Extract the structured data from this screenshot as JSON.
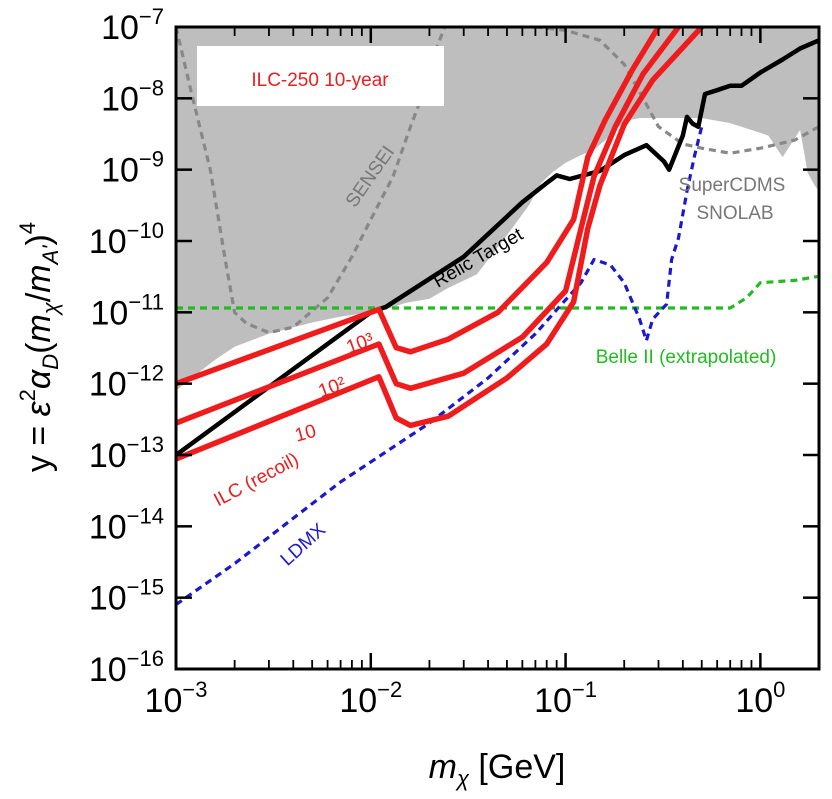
{
  "chart_data": {
    "type": "line",
    "title": "ILC-250 10-year",
    "xlabel": "m_χ [GeV]",
    "ylabel": "y = ε²α_D(m_χ/m_A')⁴",
    "x_scale": "log",
    "y_scale": "log",
    "xlim": [
      0.001,
      2.0
    ],
    "ylim": [
      1e-16,
      1e-07
    ],
    "grid": false,
    "x_ticks": [
      {
        "value": 0.001,
        "base": "10",
        "exp": "−3"
      },
      {
        "value": 0.01,
        "base": "10",
        "exp": "−2"
      },
      {
        "value": 0.1,
        "base": "10",
        "exp": "−1"
      },
      {
        "value": 1,
        "base": "10",
        "exp": "0"
      }
    ],
    "y_ticks": [
      {
        "value": 1e-16,
        "base": "10",
        "exp": "−16"
      },
      {
        "value": 1e-15,
        "base": "10",
        "exp": "−15"
      },
      {
        "value": 1e-14,
        "base": "10",
        "exp": "−14"
      },
      {
        "value": 1e-13,
        "base": "10",
        "exp": "−13"
      },
      {
        "value": 1e-12,
        "base": "10",
        "exp": "−12"
      },
      {
        "value": 1e-11,
        "base": "10",
        "exp": "−11"
      },
      {
        "value": 1e-10,
        "base": "10",
        "exp": "−10"
      },
      {
        "value": 1e-09,
        "base": "10",
        "exp": "−9"
      },
      {
        "value": 1e-08,
        "base": "10",
        "exp": "−8"
      },
      {
        "value": 1e-07,
        "base": "10",
        "exp": "−7"
      }
    ],
    "excluded_region": {
      "color": "#bebebe",
      "boundary": [
        [
          0.001,
          8e-13
        ],
        [
          0.00125,
          1.3e-12
        ],
        [
          0.0016,
          2.2e-12
        ],
        [
          0.002,
          3.3e-12
        ],
        [
          0.003,
          5e-12
        ],
        [
          0.005,
          7.2e-12
        ],
        [
          0.007,
          8.7e-12
        ],
        [
          0.01,
          1e-11
        ],
        [
          0.012,
          1.1e-11
        ],
        [
          0.015,
          1.35e-11
        ],
        [
          0.02,
          1.55e-11
        ],
        [
          0.025,
          2.2e-11
        ],
        [
          0.035,
          3.4e-11
        ],
        [
          0.05,
          1.2e-10
        ],
        [
          0.065,
          3.2e-10
        ],
        [
          0.075,
          6.5e-10
        ],
        [
          0.085,
          9e-10
        ],
        [
          0.1,
          1.25e-09
        ],
        [
          0.12,
          1.6e-09
        ],
        [
          0.14,
          1.9e-09
        ],
        [
          0.16,
          2.6e-09
        ],
        [
          0.2,
          4.8e-09
        ],
        [
          0.24,
          5.3e-09
        ],
        [
          0.3,
          5.3e-09
        ],
        [
          0.4,
          5.3e-09
        ],
        [
          0.5,
          5.3e-09
        ],
        [
          0.7,
          4.5e-09
        ],
        [
          0.9,
          3.6e-09
        ],
        [
          1.1,
          3e-09
        ],
        [
          1.3,
          1.5e-09
        ],
        [
          1.6,
          3.6e-09
        ],
        [
          1.75,
          9e-10
        ],
        [
          1.9,
          6e-10
        ],
        [
          2.0,
          5e-10
        ]
      ]
    },
    "series": [
      {
        "name": "Relic Target",
        "color": "#000000",
        "style": "solid",
        "points": [
          [
            0.001,
            1e-13
          ],
          [
            0.01,
            1e-11
          ],
          [
            0.012,
            1.2e-11
          ],
          [
            0.03,
            6e-11
          ],
          [
            0.06,
            3.5e-10
          ],
          [
            0.08,
            6.5e-10
          ],
          [
            0.09,
            8.3e-10
          ],
          [
            0.105,
            7.4e-10
          ],
          [
            0.15,
            9.6e-10
          ],
          [
            0.2,
            1.6e-09
          ],
          [
            0.26,
            2.2e-09
          ],
          [
            0.32,
            1.3e-09
          ],
          [
            0.34,
            1e-09
          ],
          [
            0.4,
            3e-09
          ],
          [
            0.42,
            5.5e-09
          ],
          [
            0.45,
            4.4e-09
          ],
          [
            0.48,
            4e-09
          ],
          [
            0.52,
            1.15e-08
          ],
          [
            0.6,
            1.3e-08
          ],
          [
            0.7,
            1.5e-08
          ],
          [
            0.8,
            1.5e-08
          ],
          [
            1.0,
            2.3e-08
          ],
          [
            1.3,
            3.5e-08
          ],
          [
            1.6,
            5e-08
          ],
          [
            2.0,
            6.5e-08
          ]
        ]
      },
      {
        "name": "10³",
        "color": "#ee1c1c",
        "style": "solid",
        "points": [
          [
            0.001,
            1e-12
          ],
          [
            0.011,
            1.1e-11
          ],
          [
            0.0135,
            3.2e-12
          ],
          [
            0.016,
            2.8e-12
          ],
          [
            0.025,
            4.2e-12
          ],
          [
            0.045,
            1e-11
          ],
          [
            0.08,
            5e-11
          ],
          [
            0.11,
            2e-10
          ],
          [
            0.13,
            1.5e-09
          ],
          [
            0.16,
            5e-09
          ],
          [
            0.22,
            2.5e-08
          ],
          [
            0.3,
            1e-07
          ]
        ]
      },
      {
        "name": "10²",
        "color": "#ee1c1c",
        "style": "solid",
        "points": [
          [
            0.001,
            2.8e-13
          ],
          [
            0.011,
            3.6e-12
          ],
          [
            0.0135,
            1e-12
          ],
          [
            0.016,
            8.6e-13
          ],
          [
            0.03,
            1.4e-12
          ],
          [
            0.06,
            4.5e-12
          ],
          [
            0.1,
            2e-11
          ],
          [
            0.12,
            1.5e-10
          ],
          [
            0.14,
            8e-10
          ],
          [
            0.18,
            4e-09
          ],
          [
            0.25,
            2.2e-08
          ],
          [
            0.38,
            1e-07
          ]
        ]
      },
      {
        "name": "10",
        "color": "#ee1c1c",
        "style": "solid",
        "points": [
          [
            0.001,
            8.8e-14
          ],
          [
            0.011,
            1.25e-12
          ],
          [
            0.0135,
            3.3e-13
          ],
          [
            0.016,
            2.6e-13
          ],
          [
            0.025,
            3.5e-13
          ],
          [
            0.05,
            1.2e-12
          ],
          [
            0.08,
            3.6e-12
          ],
          [
            0.11,
            1.4e-11
          ],
          [
            0.13,
            1.5e-10
          ],
          [
            0.15,
            6e-10
          ],
          [
            0.2,
            4.3e-09
          ],
          [
            0.28,
            1.8e-08
          ],
          [
            0.5,
            1e-07
          ]
        ]
      },
      {
        "name": "SENSEI",
        "color": "#888888",
        "style": "dashed",
        "points": [
          [
            0.001,
            1e-07
          ],
          [
            0.0012,
            1.2e-08
          ],
          [
            0.0015,
            1e-09
          ],
          [
            0.0018,
            5e-11
          ],
          [
            0.002,
            1e-11
          ],
          [
            0.0023,
            7e-12
          ],
          [
            0.003,
            5.2e-12
          ],
          [
            0.004,
            6.2e-12
          ],
          [
            0.006,
            1.6e-11
          ],
          [
            0.008,
            6e-11
          ],
          [
            0.01,
            2e-10
          ],
          [
            0.013,
            8e-10
          ],
          [
            0.016,
            4e-09
          ],
          [
            0.02,
            2e-08
          ],
          [
            0.022,
            5.5e-08
          ],
          [
            0.024,
            1e-07
          ]
        ]
      },
      {
        "name": "SuperCDMS SNOLAB",
        "color": "#888888",
        "style": "dashed",
        "points": [
          [
            0.07,
            1e-07
          ],
          [
            0.1,
            9e-08
          ],
          [
            0.15,
            6.5e-08
          ],
          [
            0.2,
            3e-08
          ],
          [
            0.25,
            1e-08
          ],
          [
            0.3,
            4e-09
          ],
          [
            0.4,
            2.3e-09
          ],
          [
            0.5,
            2e-09
          ],
          [
            0.7,
            1.7e-09
          ],
          [
            1.0,
            2e-09
          ],
          [
            1.5,
            2.6e-09
          ],
          [
            2.0,
            4e-09
          ]
        ]
      },
      {
        "name": "Belle II (extrapolated)",
        "color": "#22bb22",
        "style": "dashed",
        "points": [
          [
            0.001,
            1.15e-11
          ],
          [
            0.3,
            1.15e-11
          ],
          [
            0.7,
            1.15e-11
          ],
          [
            0.85,
            1.6e-11
          ],
          [
            1.0,
            2.6e-11
          ],
          [
            1.5,
            2.8e-11
          ],
          [
            2.0,
            3.2e-11
          ]
        ]
      },
      {
        "name": "LDMX",
        "color": "#1a1acc",
        "style": "dashed",
        "points": [
          [
            0.001,
            8e-16
          ],
          [
            0.002,
            3e-15
          ],
          [
            0.004,
            1.3e-14
          ],
          [
            0.007,
            4.2e-14
          ],
          [
            0.01,
            8e-14
          ],
          [
            0.02,
            2.8e-13
          ],
          [
            0.04,
            1.2e-12
          ],
          [
            0.07,
            5e-12
          ],
          [
            0.1,
            1.5e-11
          ],
          [
            0.12,
            2.6e-11
          ],
          [
            0.14,
            5.5e-11
          ],
          [
            0.17,
            4.6e-11
          ],
          [
            0.2,
            2.6e-11
          ],
          [
            0.24,
            8e-12
          ],
          [
            0.26,
            4e-12
          ],
          [
            0.28,
            8e-12
          ],
          [
            0.33,
            1.3e-11
          ],
          [
            0.35,
            5.5e-11
          ],
          [
            0.38,
            1.1e-10
          ],
          [
            0.42,
            5e-10
          ],
          [
            0.46,
            1.6e-09
          ],
          [
            0.5,
            4e-09
          ]
        ]
      }
    ],
    "annotations": [
      {
        "key": "ilc_box",
        "text": "ILC-250 10-year",
        "color": "#ee1c1c"
      },
      {
        "key": "relic",
        "text": "Relic Target",
        "color": "#000000"
      },
      {
        "key": "sensei",
        "text": "SENSEI",
        "color": "#777777"
      },
      {
        "key": "supercdms1",
        "text": "SuperCDMS",
        "color": "#777777"
      },
      {
        "key": "supercdms2",
        "text": "SNOLAB",
        "color": "#777777"
      },
      {
        "key": "belle",
        "text": "Belle II (extrapolated)",
        "color": "#22bb22"
      },
      {
        "key": "ldmx",
        "text": "LDMX",
        "color": "#1a1acc"
      },
      {
        "key": "ilc_recoil",
        "text": "ILC (recoil)",
        "color": "#ee1c1c"
      },
      {
        "key": "lab_1000",
        "text": "10³",
        "color": "#ee1c1c"
      },
      {
        "key": "lab_100",
        "text": "10²",
        "color": "#ee1c1c"
      },
      {
        "key": "lab_10",
        "text": "10",
        "color": "#ee1c1c"
      }
    ]
  }
}
